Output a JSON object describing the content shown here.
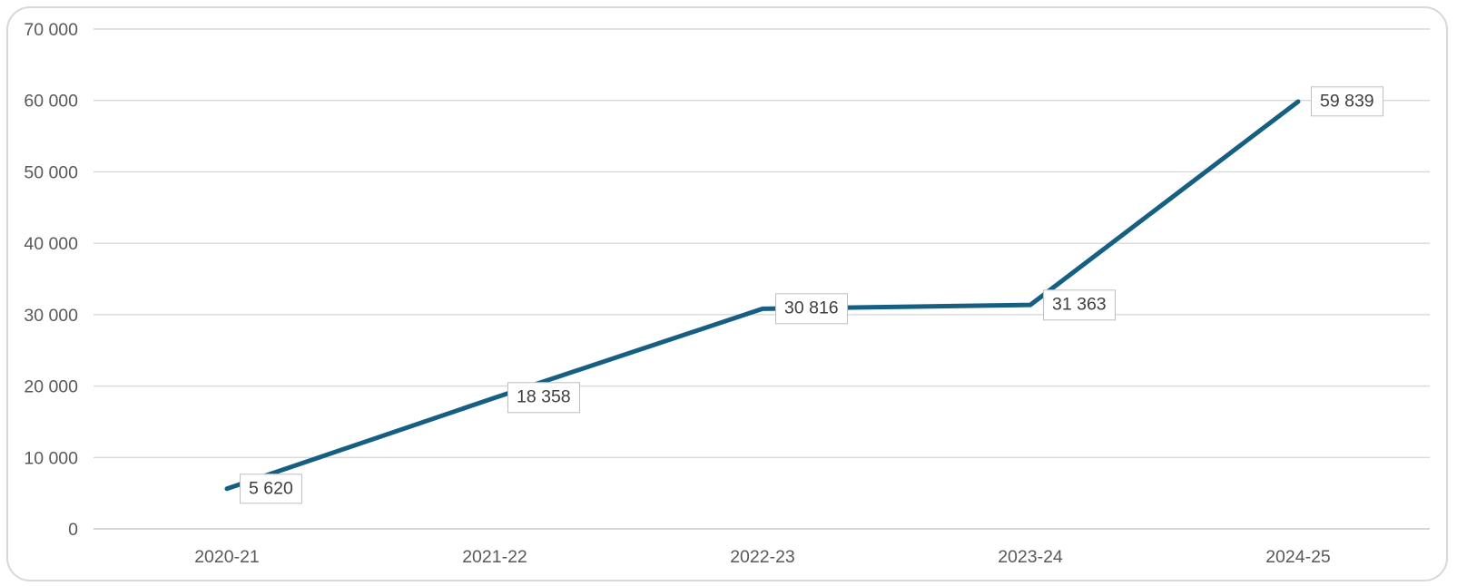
{
  "chart_data": {
    "type": "line",
    "title": "",
    "xlabel": "",
    "ylabel": "",
    "categories": [
      "2020-21",
      "2021-22",
      "2022-23",
      "2023-24",
      "2024-25"
    ],
    "series": [
      {
        "name": "",
        "values": [
          5620,
          18358,
          30816,
          31363,
          59839
        ],
        "point_labels": [
          "5 620",
          "18 358",
          "30 816",
          "31 363",
          "59 839"
        ]
      }
    ],
    "y_ticks": [
      {
        "value": 0,
        "label": "0"
      },
      {
        "value": 10000,
        "label": "10 000"
      },
      {
        "value": 20000,
        "label": "20 000"
      },
      {
        "value": 30000,
        "label": "30 000"
      },
      {
        "value": 40000,
        "label": "40 000"
      },
      {
        "value": 50000,
        "label": "50 000"
      },
      {
        "value": 60000,
        "label": "60 000"
      },
      {
        "value": 70000,
        "label": "70 000"
      }
    ],
    "ylim": [
      0,
      70000
    ],
    "grid": true,
    "legend": false,
    "data_labels_position": "right"
  },
  "style": {
    "line_color": "#156082",
    "gridline_color": "#d9d9d9",
    "axis_line_color": "#c9c9c9",
    "tick_label_color": "#595959",
    "data_label_text_color": "#404040",
    "data_label_border_color": "#bfbfbf",
    "data_label_bg": "#ffffff",
    "card_border_color": "#d8d8d8",
    "background": "#ffffff"
  }
}
